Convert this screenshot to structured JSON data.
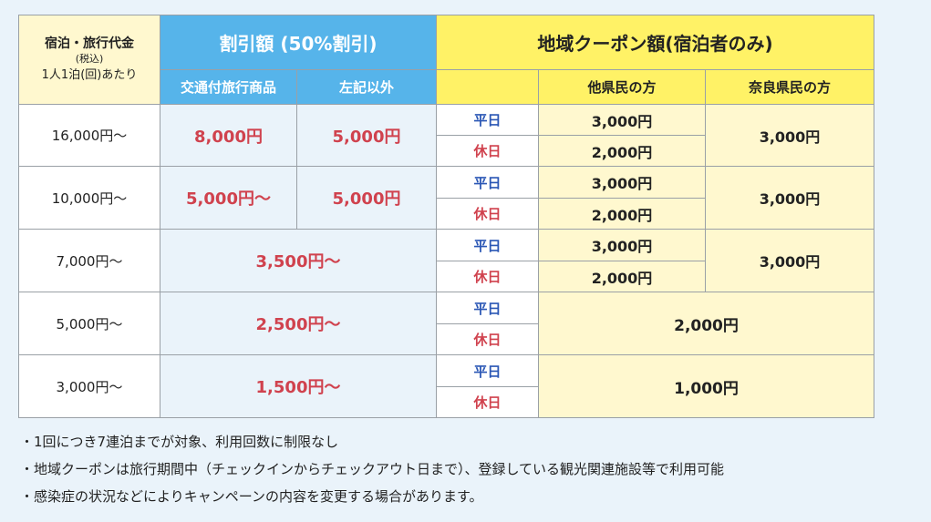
{
  "header": {
    "price_title": "宿泊・旅行代金",
    "price_tax": "(税込)",
    "price_per": "1人1泊(回)あたり",
    "discount_title": "割引額 (50%割引)",
    "discount_transport": "交通付旅行商品",
    "discount_other": "左記以外",
    "coupon_title": "地域クーポン額(宿泊者のみ)",
    "coupon_other_pref": "他県民の方",
    "coupon_nara": "奈良県民の方"
  },
  "day_labels": {
    "weekday": "平日",
    "holiday": "休日"
  },
  "rows": [
    {
      "price": "16,000円～",
      "disc_transport": "8,000円",
      "disc_other": "5,000円",
      "coupon_weekday": "3,000円",
      "coupon_holiday": "2,000円",
      "coupon_nara": "3,000円"
    },
    {
      "price": "10,000円～",
      "disc_transport": "5,000円～",
      "disc_other": "5,000円",
      "coupon_weekday": "3,000円",
      "coupon_holiday": "2,000円",
      "coupon_nara": "3,000円"
    },
    {
      "price": "7,000円～",
      "disc": "3,500円～",
      "coupon_weekday": "3,000円",
      "coupon_holiday": "2,000円",
      "coupon_nara": "3,000円"
    },
    {
      "price": "5,000円～",
      "disc": "2,500円～",
      "coupon_all": "2,000円"
    },
    {
      "price": "3,000円～",
      "disc": "1,500円～",
      "coupon_all": "1,000円"
    }
  ],
  "notes": [
    "・1回につき7連泊までが対象、利用回数に制限なし",
    "・地域クーポンは旅行期間中（チェックインからチェックアウト日まで）、登録している観光関連施設等で利用可能",
    "・感染症の状況などによりキャンペーンの内容を変更する場合があります。"
  ],
  "colors": {
    "blue_header": "#56b4ea",
    "yellow_header": "#fff266",
    "cream": "#fff8cf",
    "red": "#d0424e",
    "blue_text": "#2b57b5",
    "page_bg": "#eaf3fa"
  }
}
